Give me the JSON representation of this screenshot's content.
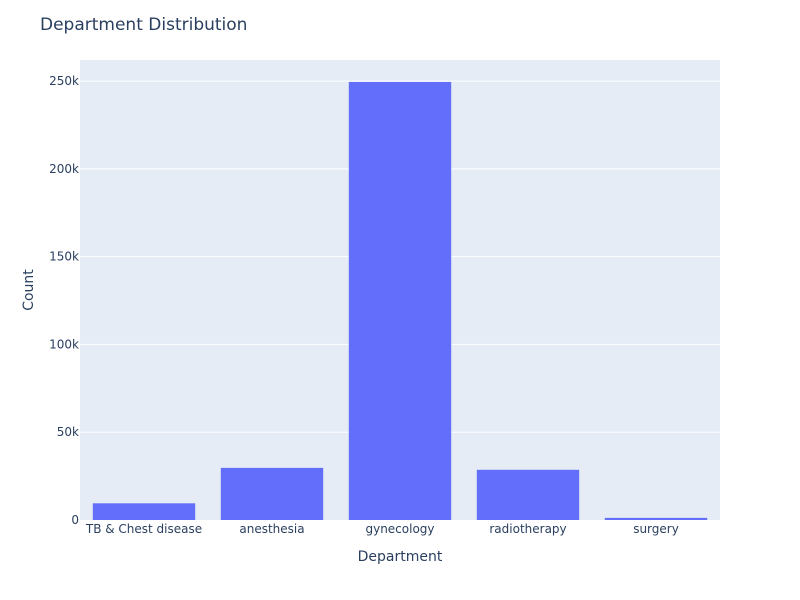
{
  "chart_data": {
    "type": "bar",
    "title": "Department Distribution",
    "xlabel": "Department",
    "ylabel": "Count",
    "categories": [
      "TB & Chest disease",
      "anesthesia",
      "gynecology",
      "radiotherapy",
      "surgery"
    ],
    "values": [
      9500,
      29700,
      249500,
      28600,
      1200
    ],
    "ylim": [
      0,
      262000
    ],
    "yticks": [
      0,
      50000,
      100000,
      150000,
      200000,
      250000
    ],
    "ytick_labels": [
      "0",
      "50k",
      "100k",
      "150k",
      "200k",
      "250k"
    ],
    "grid": true,
    "colors": {
      "bar": "#636efa",
      "plot_bg": "#e5ecf6",
      "grid": "#ffffff",
      "text": "#2a3f5f"
    }
  }
}
